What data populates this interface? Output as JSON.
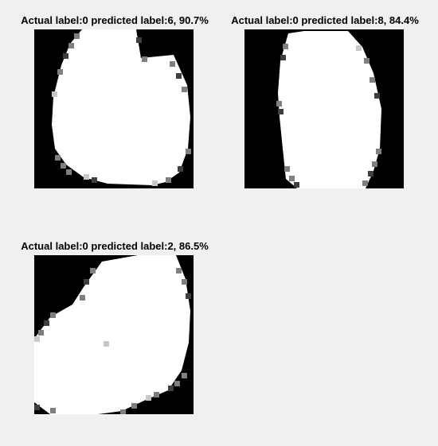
{
  "figures": [
    {
      "title": "Actual label:0 predicted label:6, 90.7%"
    },
    {
      "title": "Actual label:0 predicted label:8, 84.4%"
    },
    {
      "title": "Actual label:0 predicted label:2, 86.5%"
    }
  ]
}
